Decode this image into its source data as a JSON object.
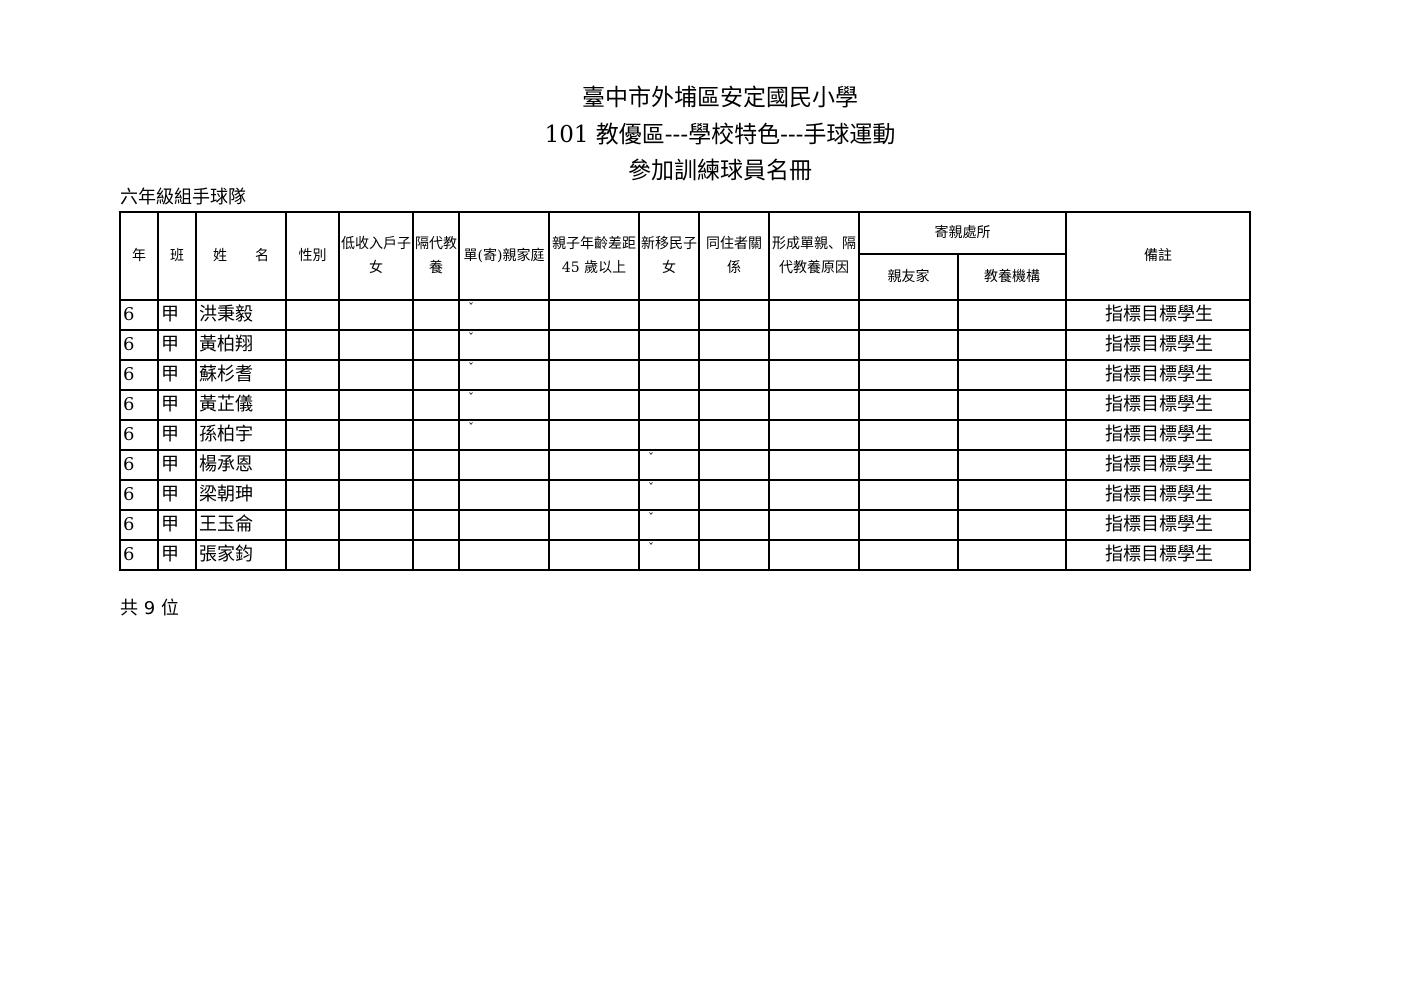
{
  "title": {
    "line1": "臺中市外埔區安定國民小學",
    "line2": "101 教優區---學校特色---手球運動",
    "line3": "參加訓練球員名冊"
  },
  "subtitle": "六年級組手球隊",
  "headers": {
    "grade": "年",
    "class": "班",
    "name": "姓　　名",
    "gender": "性別",
    "low_income": "低收入戶子女",
    "grandparent": "隔代教養",
    "single_parent": "單(寄)親家庭",
    "age_gap": "親子年齡差距 45 歲以上",
    "new_immigrant": "新移民子女",
    "cohabitant": "同住者關係",
    "reason": "形成單親、隔代教養原因",
    "foster": "寄親處所",
    "foster_relatives": "親友家",
    "foster_institution": "教養機構",
    "remarks": "備註"
  },
  "check_mark": "ˇ",
  "rows": [
    {
      "grade": "6",
      "class": "甲",
      "name": "洪秉毅",
      "single_parent": true,
      "new_immigrant": false,
      "remarks": "指標目標學生"
    },
    {
      "grade": "6",
      "class": "甲",
      "name": "黃柏翔",
      "single_parent": true,
      "new_immigrant": false,
      "remarks": "指標目標學生"
    },
    {
      "grade": "6",
      "class": "甲",
      "name": "蘇杉耆",
      "single_parent": true,
      "new_immigrant": false,
      "remarks": "指標目標學生"
    },
    {
      "grade": "6",
      "class": "甲",
      "name": "黃芷儀",
      "single_parent": true,
      "new_immigrant": false,
      "remarks": "指標目標學生"
    },
    {
      "grade": "6",
      "class": "甲",
      "name": "孫柏宇",
      "single_parent": true,
      "new_immigrant": false,
      "remarks": "指標目標學生"
    },
    {
      "grade": "6",
      "class": "甲",
      "name": "楊承恩",
      "single_parent": false,
      "new_immigrant": true,
      "remarks": "指標目標學生"
    },
    {
      "grade": "6",
      "class": "甲",
      "name": "梁朝珅",
      "single_parent": false,
      "new_immigrant": true,
      "remarks": "指標目標學生"
    },
    {
      "grade": "6",
      "class": "甲",
      "name": "王玉侖",
      "single_parent": false,
      "new_immigrant": true,
      "remarks": "指標目標學生"
    },
    {
      "grade": "6",
      "class": "甲",
      "name": "張家鈞",
      "single_parent": false,
      "new_immigrant": true,
      "remarks": "指標目標學生"
    }
  ],
  "total": "共 9 位"
}
